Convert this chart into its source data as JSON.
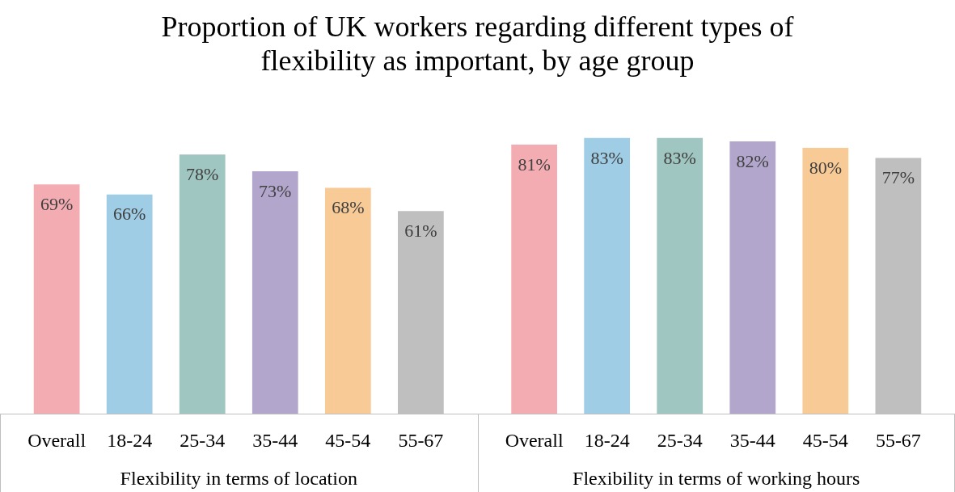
{
  "chart_data": {
    "type": "bar",
    "title": "Proportion of UK workers regarding different types of flexibility as important, by age group",
    "categories": [
      "Flexibility in terms of location",
      "Flexibility in terms of working hours"
    ],
    "series": [
      {
        "name": "Overall",
        "color": "#f4acb3",
        "values": [
          69,
          81
        ],
        "value_labels": [
          "69%",
          "81%"
        ]
      },
      {
        "name": "18-24",
        "color": "#9fcde5",
        "values": [
          66,
          83
        ],
        "value_labels": [
          "66%",
          "83%"
        ]
      },
      {
        "name": "25-34",
        "color": "#9fc6c1",
        "values": [
          78,
          83
        ],
        "value_labels": [
          "78%",
          "83%"
        ]
      },
      {
        "name": "35-44",
        "color": "#b3a6cc",
        "values": [
          73,
          82
        ],
        "value_labels": [
          "73%",
          "82%"
        ]
      },
      {
        "name": "45-54",
        "color": "#f8ca96",
        "values": [
          68,
          80
        ],
        "value_labels": [
          "68%",
          "80%"
        ]
      },
      {
        "name": "55-67",
        "color": "#bfbfbf",
        "values": [
          61,
          77
        ],
        "value_labels": [
          "61%",
          "77%"
        ]
      }
    ],
    "legend": false
  }
}
